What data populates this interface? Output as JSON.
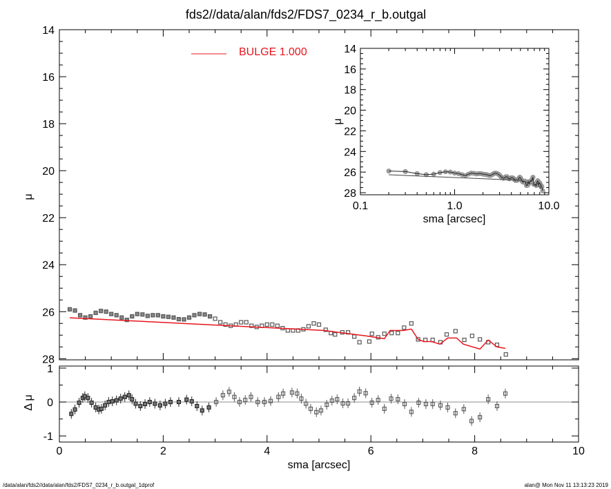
{
  "title": "fds2//data/alan/fds2/FDS7_0234_r_b.outgal",
  "footer_left": "/data/alan/fds2//data/alan/fds2/FDS7_0234_r_b.outgal_1dprof",
  "footer_right": "alan@  Mon Nov 11 13:13:23 2019",
  "colors": {
    "model": "#e8141c",
    "data": "#555555",
    "axis": "#000000",
    "zero_line": "#999999"
  },
  "chart_data": [
    {
      "id": "main",
      "type": "scatter",
      "title": "fds2//data/alan/fds2/FDS7_0234_r_b.outgal",
      "xlabel": "",
      "ylabel": "μ",
      "xlim": [
        0,
        10
      ],
      "ylim": [
        14,
        28.05
      ],
      "y_inverted": true,
      "yticks": [
        "14",
        "16",
        "18",
        "20",
        "22",
        "24",
        "26",
        "28"
      ],
      "ytick_values": [
        14,
        16,
        18,
        20,
        22,
        24,
        26,
        28
      ],
      "legend": {
        "label": "BULGE  1.000",
        "placement": "top-left"
      },
      "data": {
        "sma": [
          0.2,
          0.3,
          0.4,
          0.5,
          0.6,
          0.7,
          0.8,
          0.9,
          1.0,
          1.1,
          1.2,
          1.3,
          1.4,
          1.5,
          1.6,
          1.7,
          1.8,
          1.9,
          2.0,
          2.1,
          2.2,
          2.3,
          2.4,
          2.5,
          2.6,
          2.7,
          2.8,
          2.9,
          3.0,
          3.1,
          3.2,
          3.3,
          3.4,
          3.5,
          3.6,
          3.7,
          3.8,
          3.9,
          4.0,
          4.1,
          4.2,
          4.3,
          4.4,
          4.5,
          4.6,
          4.7,
          4.8,
          4.9,
          5.0,
          5.13,
          5.23,
          5.31,
          5.45,
          5.56,
          5.68,
          5.78,
          5.97,
          6.02,
          6.14,
          6.26,
          6.4,
          6.52,
          6.64,
          6.78,
          6.91,
          7.05,
          7.19,
          7.34,
          7.46,
          7.63,
          7.8,
          7.95,
          8.1,
          8.26,
          8.43,
          8.6
        ],
        "mu": [
          25.9,
          25.95,
          26.15,
          26.25,
          26.2,
          26.05,
          25.97,
          26.0,
          26.1,
          26.15,
          26.25,
          26.35,
          26.2,
          26.1,
          26.12,
          26.18,
          26.15,
          26.15,
          26.2,
          26.22,
          26.25,
          26.32,
          26.33,
          26.25,
          26.15,
          26.1,
          26.12,
          26.2,
          26.3,
          26.45,
          26.55,
          26.6,
          26.55,
          26.45,
          26.45,
          26.6,
          26.65,
          26.6,
          26.55,
          26.55,
          26.6,
          26.7,
          26.8,
          26.8,
          26.8,
          26.75,
          26.62,
          26.5,
          26.55,
          26.77,
          26.91,
          26.97,
          26.88,
          26.88,
          27.06,
          27.3,
          27.27,
          26.94,
          27.09,
          26.94,
          26.91,
          26.91,
          26.68,
          26.5,
          27.18,
          27.2,
          27.2,
          27.3,
          26.97,
          26.83,
          27.2,
          27.03,
          27.18,
          27.3,
          27.41,
          27.82
        ]
      },
      "model": {
        "name": "BULGE",
        "sma": [
          0.2,
          5.1,
          5.9,
          6.26,
          6.37,
          6.63,
          6.78,
          6.91,
          7.02,
          7.16,
          7.33,
          7.48,
          7.65,
          7.78,
          8.1,
          8.26,
          8.43,
          8.59
        ],
        "mu": [
          26.26,
          26.8,
          27.03,
          27.15,
          26.8,
          26.8,
          26.74,
          27.18,
          27.27,
          27.27,
          27.38,
          27.12,
          27.12,
          27.38,
          27.59,
          27.21,
          27.5,
          27.56
        ]
      }
    },
    {
      "id": "residual",
      "type": "scatter",
      "xlabel": "sma [arcsec]",
      "ylabel": "Δ μ",
      "xlim": [
        0,
        10
      ],
      "ylim": [
        -1.18,
        1.06
      ],
      "xticks": [
        "0",
        "2",
        "4",
        "6",
        "8",
        "10"
      ],
      "xtick_values": [
        0,
        2,
        4,
        6,
        8,
        10
      ],
      "yticks": [
        "1",
        "0",
        "-1"
      ],
      "ytick_values": [
        1,
        0,
        -1
      ],
      "data": {
        "sma": [
          0.23,
          0.3,
          0.38,
          0.45,
          0.49,
          0.55,
          0.62,
          0.7,
          0.76,
          0.81,
          0.88,
          0.95,
          1.02,
          1.1,
          1.18,
          1.26,
          1.34,
          1.4,
          1.47,
          1.56,
          1.65,
          1.74,
          1.84,
          1.94,
          2.04,
          2.14,
          2.3,
          2.45,
          2.55,
          2.65,
          2.75,
          2.88,
          3.02,
          3.15,
          3.27,
          3.37,
          3.47,
          3.58,
          3.69,
          3.82,
          3.95,
          4.07,
          4.22,
          4.31,
          4.48,
          4.58,
          4.66,
          4.75,
          4.84,
          4.95,
          5.04,
          5.15,
          5.25,
          5.35,
          5.46,
          5.56,
          5.68,
          5.78,
          5.9,
          6.02,
          6.14,
          6.26,
          6.39,
          6.52,
          6.65,
          6.78,
          6.92,
          7.06,
          7.19,
          7.34,
          7.48,
          7.63,
          7.79,
          7.94,
          8.1,
          8.26,
          8.43,
          8.59
        ],
        "delta_mu": [
          -0.35,
          -0.22,
          -0.02,
          0.12,
          0.17,
          0.12,
          -0.02,
          -0.16,
          -0.22,
          -0.2,
          -0.1,
          0.0,
          0.02,
          0.05,
          0.1,
          0.15,
          0.2,
          0.08,
          -0.05,
          -0.12,
          -0.06,
          0.0,
          -0.05,
          -0.1,
          -0.05,
          0.0,
          0.0,
          0.07,
          0.02,
          -0.12,
          -0.25,
          -0.16,
          0.0,
          0.2,
          0.3,
          0.15,
          0.0,
          0.06,
          0.15,
          0.0,
          0.0,
          0.03,
          0.15,
          0.25,
          0.28,
          0.25,
          0.1,
          -0.05,
          -0.2,
          -0.3,
          -0.25,
          -0.08,
          0.04,
          0.08,
          -0.04,
          -0.04,
          0.12,
          0.31,
          0.26,
          -0.02,
          0.06,
          -0.2,
          0.1,
          0.08,
          -0.06,
          -0.29,
          -0.02,
          -0.06,
          -0.06,
          -0.1,
          -0.16,
          -0.33,
          -0.21,
          -0.56,
          -0.45,
          0.08,
          -0.12,
          0.25
        ]
      }
    },
    {
      "id": "inset",
      "type": "line",
      "xlabel": "sma [arcsec]",
      "ylabel": "μ",
      "xscale": "log",
      "xlim": [
        0.1,
        10
      ],
      "ylim": [
        14,
        28.2
      ],
      "xticks": [
        "0.1",
        "1.0",
        "10.0"
      ],
      "xtick_values": [
        0.1,
        1,
        10
      ],
      "yticks": [
        "14",
        "16",
        "18",
        "20",
        "22",
        "24",
        "26",
        "28"
      ],
      "ytick_values": [
        14,
        16,
        18,
        20,
        22,
        24,
        26,
        28
      ]
    }
  ]
}
